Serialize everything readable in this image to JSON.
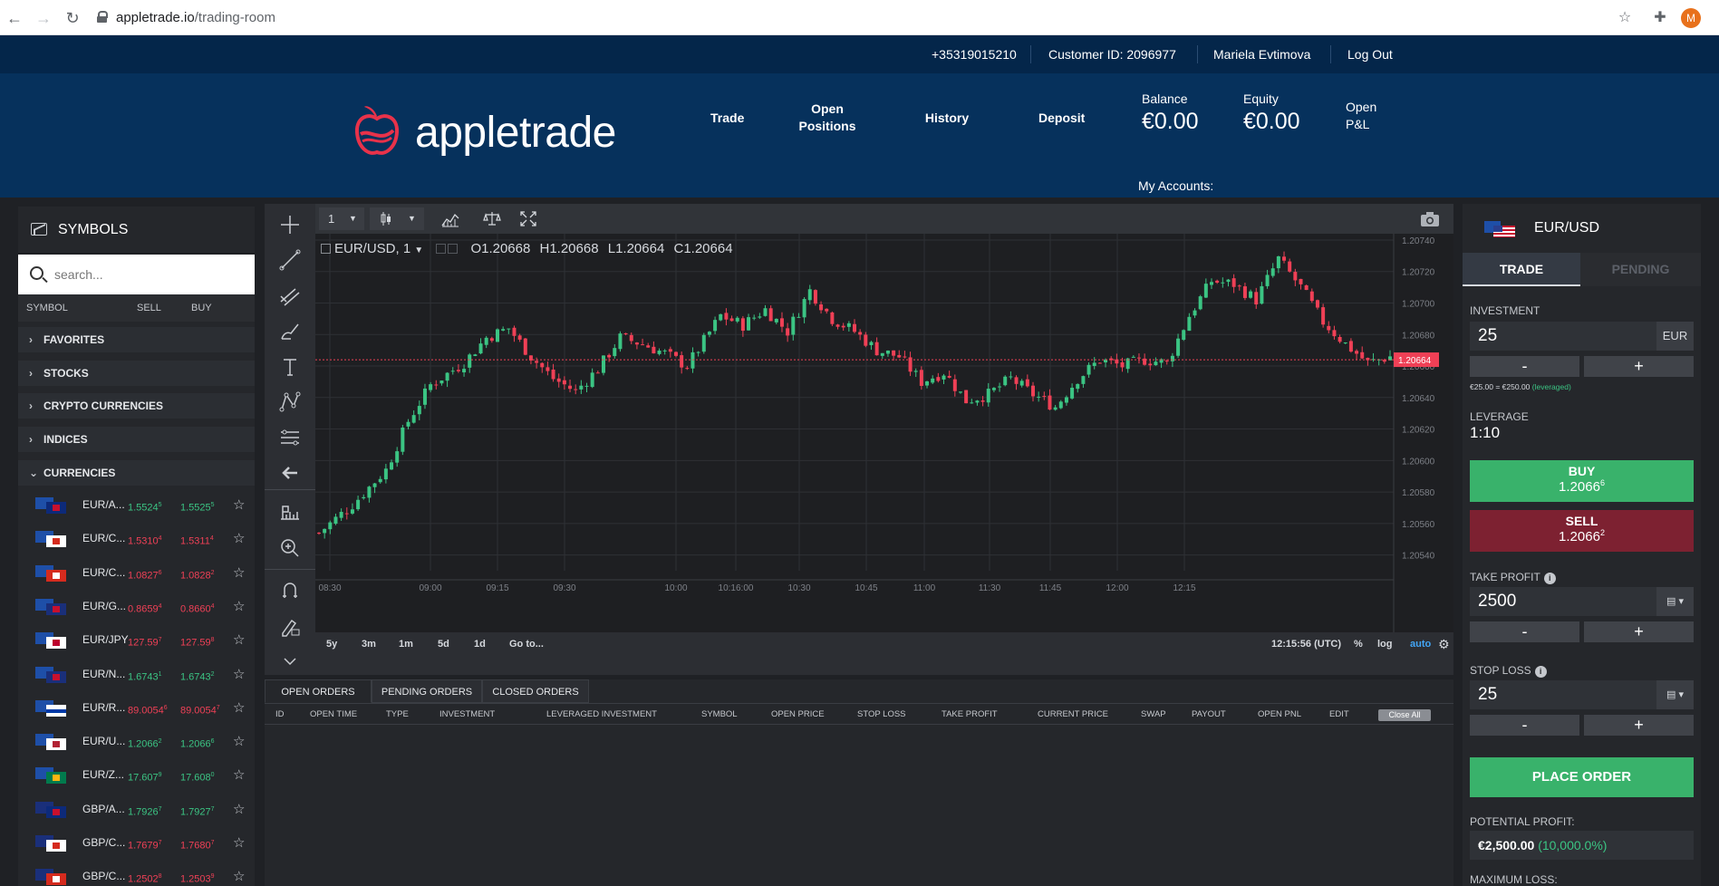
{
  "browser": {
    "url_domain": "appletrade.io",
    "url_path": "/trading-room",
    "profile_initial": "M"
  },
  "topbar": {
    "phone": "+35319015210",
    "customer_id": "Customer ID: 2096977",
    "user_name": "Mariela Evtimova",
    "logout": "Log Out"
  },
  "header": {
    "logo_text": "appletrade",
    "menu": [
      "Trade",
      "Open\nPositions",
      "History",
      "Deposit"
    ],
    "balance_label": "Balance",
    "balance_value": "€0.00",
    "equity_label": "Equity",
    "equity_value": "€0.00",
    "open_pnl_label_1": "Open",
    "open_pnl_label_2": "P&L",
    "my_accounts": "My Accounts:"
  },
  "symbols": {
    "title": "SYMBOLS",
    "search_placeholder": "search...",
    "col_symbol": "SYMBOL",
    "col_sell": "SELL",
    "col_buy": "BUY",
    "categories": [
      "FAVORITES",
      "STOCKS",
      "CRYPTO CURRENCIES",
      "INDICES",
      "CURRENCIES"
    ],
    "rows": [
      {
        "name": "EUR/A...",
        "sell": "1.5524",
        "sell_sup": "5",
        "buy": "1.5525",
        "buy_sup": "5",
        "dir": "green",
        "flag2": "au"
      },
      {
        "name": "EUR/C...",
        "sell": "1.5310",
        "sell_sup": "4",
        "buy": "1.5311",
        "buy_sup": "4",
        "dir": "red",
        "flag2": "ca"
      },
      {
        "name": "EUR/C...",
        "sell": "1.0827",
        "sell_sup": "6",
        "buy": "1.0828",
        "buy_sup": "2",
        "dir": "red",
        "flag2": "ch"
      },
      {
        "name": "EUR/G...",
        "sell": "0.8659",
        "sell_sup": "4",
        "buy": "0.8660",
        "buy_sup": "4",
        "dir": "red",
        "flag2": "gb"
      },
      {
        "name": "EUR/JPY",
        "sell": "127.59",
        "sell_sup": "7",
        "buy": "127.59",
        "buy_sup": "8",
        "dir": "red",
        "flag2": "jp"
      },
      {
        "name": "EUR/N...",
        "sell": "1.6743",
        "sell_sup": "1",
        "buy": "1.6743",
        "buy_sup": "2",
        "dir": "green",
        "flag2": "nz"
      },
      {
        "name": "EUR/R...",
        "sell": "89.0054",
        "sell_sup": "6",
        "buy": "89.0054",
        "buy_sup": "7",
        "dir": "red",
        "flag2": "ru"
      },
      {
        "name": "EUR/U...",
        "sell": "1.2066",
        "sell_sup": "2",
        "buy": "1.2066",
        "buy_sup": "6",
        "dir": "green",
        "flag2": "us"
      },
      {
        "name": "EUR/Z...",
        "sell": "17.607",
        "sell_sup": "9",
        "buy": "17.608",
        "buy_sup": "0",
        "dir": "green",
        "flag2": "za"
      },
      {
        "name": "GBP/A...",
        "sell": "1.7926",
        "sell_sup": "7",
        "buy": "1.7927",
        "buy_sup": "7",
        "dir": "green",
        "flag1": "gb",
        "flag2": "au"
      },
      {
        "name": "GBP/C...",
        "sell": "1.7679",
        "sell_sup": "7",
        "buy": "1.7680",
        "buy_sup": "7",
        "dir": "red",
        "flag1": "gb",
        "flag2": "ca"
      },
      {
        "name": "GBP/C...",
        "sell": "1.2502",
        "sell_sup": "8",
        "buy": "1.2503",
        "buy_sup": "9",
        "dir": "red",
        "flag1": "gb",
        "flag2": "ch"
      }
    ]
  },
  "chart_toolbar": {
    "interval": "1",
    "screenshot_icon": "camera-icon"
  },
  "chart_data": {
    "type": "candlestick",
    "title": "EUR/USD, 1",
    "ohlc_legend": {
      "O": "O1.20668",
      "H": "H1.20668",
      "L": "L1.20664",
      "C": "C1.20664"
    },
    "y_ticks": [
      "1.20740",
      "1.20720",
      "1.20700",
      "1.20680",
      "1.20660",
      "1.20640",
      "1.20620",
      "1.20600",
      "1.20580",
      "1.20560",
      "1.20540"
    ],
    "ylim": [
      1.2053,
      1.20744
    ],
    "x_ticks": [
      "08:30",
      "09:00",
      "09:15",
      "09:30",
      "10:00",
      "10:16:00",
      "10:30",
      "10:45",
      "11:00",
      "11:30",
      "11:45",
      "12:00",
      "12:15"
    ],
    "current_price": "1.20664",
    "up_color": "#3bc483",
    "down_color": "#ef4056",
    "close_path": [
      [
        0,
        1.20554
      ],
      [
        6,
        1.20572
      ],
      [
        12,
        1.20594
      ],
      [
        16,
        1.20625
      ],
      [
        20,
        1.20648
      ],
      [
        26,
        1.20662
      ],
      [
        30,
        1.20678
      ],
      [
        34,
        1.20684
      ],
      [
        38,
        1.20666
      ],
      [
        42,
        1.20652
      ],
      [
        46,
        1.20644
      ],
      [
        50,
        1.20658
      ],
      [
        54,
        1.20678
      ],
      [
        58,
        1.20674
      ],
      [
        62,
        1.20668
      ],
      [
        66,
        1.2066
      ],
      [
        72,
        1.20692
      ],
      [
        76,
        1.20686
      ],
      [
        80,
        1.20696
      ],
      [
        84,
        1.20682
      ],
      [
        88,
        1.20708
      ],
      [
        92,
        1.2069
      ],
      [
        96,
        1.20682
      ],
      [
        100,
        1.2067
      ],
      [
        104,
        1.20666
      ],
      [
        108,
        1.2065
      ],
      [
        112,
        1.20656
      ],
      [
        116,
        1.20638
      ],
      [
        120,
        1.20642
      ],
      [
        124,
        1.20652
      ],
      [
        128,
        1.20642
      ],
      [
        132,
        1.20634
      ],
      [
        136,
        1.20652
      ],
      [
        140,
        1.20664
      ],
      [
        144,
        1.2066
      ],
      [
        148,
        1.20664
      ],
      [
        152,
        1.20662
      ],
      [
        156,
        1.20692
      ],
      [
        160,
        1.20714
      ],
      [
        164,
        1.20712
      ],
      [
        168,
        1.20702
      ],
      [
        172,
        1.20728
      ],
      [
        176,
        1.2071
      ],
      [
        180,
        1.20688
      ],
      [
        184,
        1.20674
      ],
      [
        188,
        1.20662
      ],
      [
        192,
        1.20666
      ]
    ]
  },
  "chart_bottom": {
    "ranges": [
      "5y",
      "3m",
      "1m",
      "5d",
      "1d",
      "Go to..."
    ],
    "time": "12:15:56 (UTC)",
    "percent": "%",
    "log": "log",
    "auto": "auto"
  },
  "orders": {
    "tabs": [
      "OPEN ORDERS",
      "PENDING ORDERS",
      "CLOSED ORDERS"
    ],
    "columns": [
      "ID",
      "OPEN TIME",
      "TYPE",
      "INVESTMENT",
      "LEVERAGED INVESTMENT",
      "SYMBOL",
      "OPEN PRICE",
      "STOP LOSS",
      "TAKE PROFIT",
      "CURRENT PRICE",
      "SWAP",
      "PAYOUT",
      "OPEN PNL",
      "EDIT"
    ],
    "close_all": "Close All"
  },
  "trade": {
    "symbol": "EUR/USD",
    "tab_trade": "TRADE",
    "tab_pending": "PENDING",
    "investment_label": "INVESTMENT",
    "investment_value": "25",
    "investment_currency": "EUR",
    "minus": "-",
    "plus": "+",
    "leverage_note": "€25.00 = €250.00",
    "leverage_note_suffix": "(leveraged)",
    "leverage_label": "LEVERAGE",
    "leverage_value": "1:10",
    "buy_label": "BUY",
    "buy_price": "1.2066",
    "buy_sup": "6",
    "sell_label": "SELL",
    "sell_price": "1.2066",
    "sell_sup": "2",
    "take_profit_label": "TAKE PROFIT",
    "take_profit_value": "2500",
    "stop_loss_label": "STOP LOSS",
    "stop_loss_value": "25",
    "place_order": "PLACE ORDER",
    "potential_profit_label": "POTENTIAL PROFIT:",
    "potential_profit_value": "€2,500.00",
    "potential_profit_pct": "(10,000.0%)",
    "maximum_loss_label": "MAXIMUM LOSS:"
  }
}
